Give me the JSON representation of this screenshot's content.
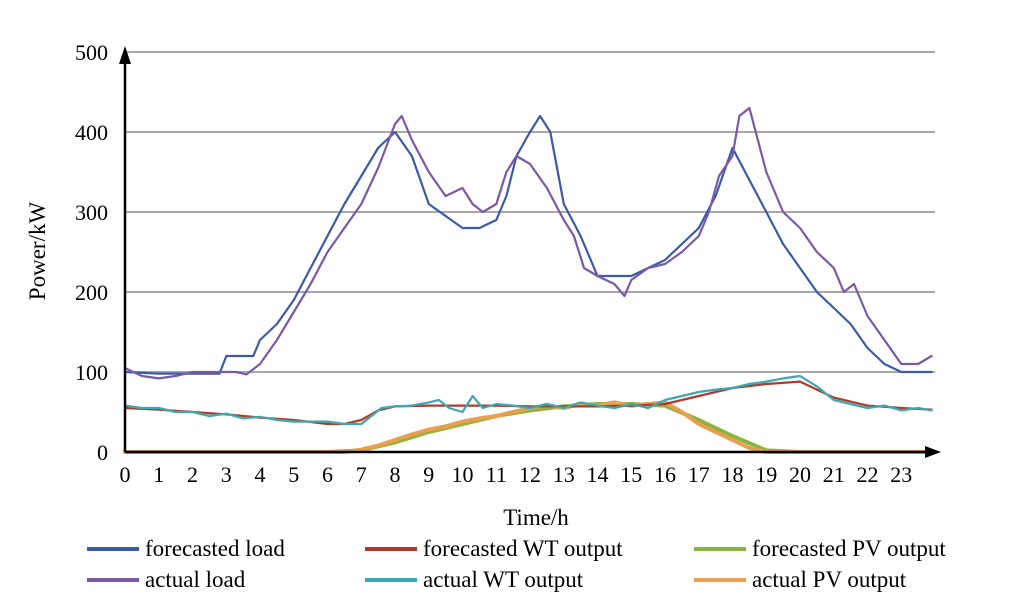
{
  "chart_data": {
    "type": "line",
    "xlabel": "Time/h",
    "ylabel": "Power/kW",
    "xlim": [
      0,
      24
    ],
    "ylim": [
      0,
      500
    ],
    "x_ticks": [
      "0",
      "1",
      "2",
      "3",
      "4",
      "5",
      "6",
      "7",
      "8",
      "9",
      "10",
      "11",
      "12",
      "13",
      "14",
      "15",
      "16",
      "17",
      "18",
      "19",
      "20",
      "21",
      "22",
      "23"
    ],
    "y_ticks": [
      "0",
      "100",
      "200",
      "300",
      "400",
      "500"
    ],
    "grid": "horizontal",
    "legend_position": "bottom",
    "series": [
      {
        "name": "forecasted load",
        "color": "#3c5aa6",
        "x": [
          0,
          1,
          2,
          2.8,
          3,
          3.5,
          3.8,
          4,
          4.5,
          5,
          5.5,
          6,
          6.5,
          7,
          7.5,
          8,
          8.5,
          9,
          9.5,
          10,
          10.5,
          11,
          11.3,
          11.6,
          12,
          12.3,
          12.6,
          13,
          13.5,
          14,
          14.5,
          15,
          15.5,
          16,
          16.5,
          17,
          17.5,
          18,
          18.5,
          19,
          19.5,
          20,
          20.5,
          21,
          21.5,
          22,
          22.5,
          23,
          23.5,
          23.9
        ],
        "y": [
          100,
          98,
          98,
          98,
          120,
          120,
          120,
          140,
          160,
          190,
          230,
          270,
          310,
          345,
          380,
          400,
          370,
          310,
          295,
          280,
          280,
          290,
          320,
          370,
          400,
          420,
          400,
          310,
          270,
          220,
          220,
          220,
          230,
          240,
          260,
          280,
          320,
          380,
          340,
          300,
          260,
          230,
          200,
          180,
          160,
          130,
          110,
          100,
          100,
          100
        ]
      },
      {
        "name": "actual load",
        "color": "#7a5aa8",
        "x": [
          0,
          0.5,
          1,
          1.5,
          2,
          2.5,
          3,
          3.3,
          3.6,
          4,
          4.5,
          5,
          5.5,
          6,
          6.5,
          7,
          7.5,
          8,
          8.2,
          8.5,
          9,
          9.5,
          10,
          10.3,
          10.6,
          11,
          11.3,
          11.6,
          12,
          12.5,
          13,
          13.3,
          13.6,
          14,
          14.5,
          14.8,
          15,
          15.5,
          16,
          16.5,
          17,
          17.3,
          17.6,
          18,
          18.2,
          18.5,
          19,
          19.5,
          20,
          20.5,
          21,
          21.3,
          21.6,
          22,
          22.5,
          23,
          23.5,
          23.9
        ],
        "y": [
          105,
          95,
          92,
          95,
          100,
          100,
          100,
          100,
          97,
          110,
          140,
          175,
          210,
          250,
          280,
          310,
          355,
          410,
          420,
          390,
          350,
          320,
          330,
          310,
          300,
          310,
          350,
          370,
          360,
          330,
          290,
          270,
          230,
          220,
          210,
          195,
          215,
          230,
          235,
          250,
          270,
          300,
          345,
          370,
          420,
          430,
          350,
          300,
          280,
          250,
          230,
          200,
          210,
          170,
          140,
          110,
          110,
          120
        ]
      },
      {
        "name": "forecasted WT output",
        "color": "#b03a2e",
        "x": [
          0,
          1,
          2,
          3,
          4,
          5,
          6,
          6.5,
          7,
          7.5,
          8,
          9,
          10,
          11,
          12,
          13,
          14,
          15,
          16,
          17,
          18,
          19,
          20,
          21,
          22,
          23,
          23.9
        ],
        "y": [
          55,
          53,
          50,
          47,
          43,
          40,
          35,
          35,
          40,
          52,
          57,
          58,
          58,
          58,
          57,
          57,
          57,
          58,
          60,
          70,
          80,
          85,
          88,
          68,
          58,
          55,
          53
        ]
      },
      {
        "name": "actual WT output",
        "color": "#3ca8b0",
        "x": [
          0,
          0.5,
          1,
          1.5,
          2,
          2.5,
          3,
          3.5,
          4,
          4.5,
          5,
          5.5,
          6,
          6.5,
          7,
          7.3,
          7.6,
          8,
          8.5,
          9,
          9.3,
          9.6,
          10,
          10.3,
          10.6,
          11,
          11.5,
          12,
          12.5,
          13,
          13.5,
          14,
          14.5,
          15,
          15.5,
          16,
          16.5,
          17,
          17.5,
          18,
          18.5,
          19,
          19.5,
          20,
          20.5,
          21,
          21.5,
          22,
          22.5,
          23,
          23.5,
          23.9
        ],
        "y": [
          58,
          55,
          55,
          50,
          50,
          45,
          48,
          42,
          44,
          40,
          38,
          38,
          38,
          35,
          35,
          45,
          55,
          57,
          58,
          62,
          65,
          55,
          50,
          70,
          55,
          60,
          58,
          55,
          60,
          55,
          62,
          58,
          55,
          60,
          55,
          65,
          70,
          75,
          78,
          80,
          85,
          88,
          92,
          95,
          82,
          65,
          60,
          55,
          58,
          52,
          55,
          52
        ]
      },
      {
        "name": "forecasted PV output",
        "color": "#8cb43c",
        "x": [
          0,
          6,
          7,
          8,
          9,
          10,
          11,
          12,
          13,
          14,
          15,
          16,
          17,
          18,
          19,
          20,
          24
        ],
        "y": [
          0,
          0,
          2,
          12,
          25,
          35,
          45,
          52,
          57,
          60,
          60,
          58,
          40,
          20,
          2,
          0,
          0
        ]
      },
      {
        "name": "actual PV output",
        "color": "#e8a050",
        "x": [
          0,
          6,
          6.5,
          7,
          7.5,
          8,
          8.5,
          9,
          9.5,
          10,
          10.5,
          11,
          11.5,
          12,
          12.5,
          13,
          13.5,
          14,
          14.5,
          15,
          15.5,
          16,
          16.5,
          17,
          17.5,
          18,
          18.5,
          19,
          19.5,
          20,
          24
        ],
        "y": [
          0,
          0,
          0,
          3,
          8,
          15,
          22,
          28,
          32,
          38,
          42,
          45,
          50,
          55,
          58,
          55,
          60,
          58,
          62,
          58,
          60,
          62,
          50,
          35,
          25,
          15,
          5,
          0,
          0,
          0,
          0
        ]
      }
    ]
  }
}
